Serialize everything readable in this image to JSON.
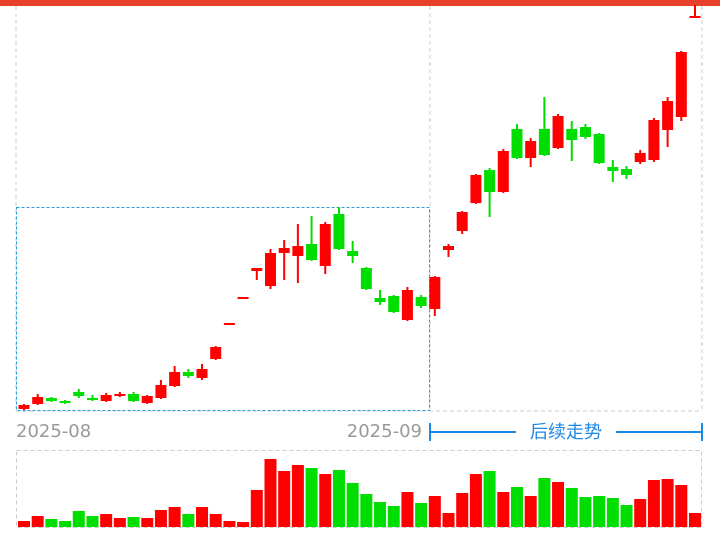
{
  "chart_data": [
    {
      "type": "candlestick",
      "x_labels": [
        "2025-08",
        "2025-09"
      ],
      "annotation": "后续走势",
      "up_color": "#ff0000",
      "down_color": "#00dd00",
      "ylim": [
        0,
        102
      ],
      "open": [
        0.25,
        1.5,
        3,
        2.25,
        4.5,
        3,
        2.25,
        3.5,
        4,
        1.75,
        3,
        6,
        9.5,
        8,
        12.75,
        21.25,
        27.75,
        34.75,
        31,
        39.25,
        38.5,
        41.5,
        36,
        49,
        39.75,
        35.5,
        28,
        28.5,
        22.5,
        28.25,
        25.25,
        40,
        44.75,
        51.75,
        60,
        54.5,
        70.25,
        63,
        70.25,
        65.5,
        70.25,
        70.75,
        69,
        60.75,
        60.25,
        62,
        62.5,
        70,
        73.25,
        98
      ],
      "high": [
        1.5,
        4,
        3.25,
        2.5,
        5.25,
        3.75,
        4.25,
        4.5,
        4.5,
        3.75,
        7.5,
        11,
        10.25,
        11.5,
        16,
        21.75,
        28.25,
        35.5,
        40.25,
        42.5,
        46.5,
        48.5,
        47,
        50.75,
        42.25,
        35.75,
        30,
        28.75,
        30.75,
        28.75,
        33.5,
        41.5,
        49.75,
        59,
        60.5,
        65.25,
        71.5,
        68,
        78.25,
        74,
        72.25,
        71.5,
        69.25,
        62.5,
        61,
        65,
        73,
        78.25,
        89.75,
        101.25
      ],
      "low": [
        0,
        1.25,
        2,
        1.5,
        3,
        2.25,
        2,
        3.25,
        2,
        1.5,
        2.75,
        5.75,
        8,
        7.5,
        12.5,
        21.25,
        27.75,
        32.5,
        30.25,
        32.5,
        31.75,
        37.25,
        34,
        40,
        36.75,
        30,
        26.25,
        24.25,
        22.25,
        25.5,
        23.5,
        38.25,
        44,
        51.5,
        48.25,
        54.25,
        62.75,
        60.75,
        63.5,
        65.25,
        62.25,
        67.75,
        61.5,
        57,
        57.75,
        61.5,
        62,
        65.75,
        72.25,
        98
      ],
      "close": [
        1.25,
        3.25,
        2.25,
        1.75,
        3.5,
        2.5,
        3.75,
        4,
        2.25,
        3.5,
        6.25,
        9.5,
        8.5,
        10.25,
        15.75,
        21.75,
        28.25,
        35.5,
        39.25,
        40.5,
        41,
        37.5,
        46.5,
        40.25,
        38.5,
        30.25,
        27,
        24.5,
        30,
        26,
        33.25,
        41,
        49.5,
        58.75,
        54.5,
        64.75,
        63,
        67.25,
        63.75,
        73.5,
        67.5,
        68.25,
        61.75,
        59.75,
        58.75,
        64.25,
        72.5,
        77.25,
        89.5,
        98.5
      ]
    },
    {
      "type": "bar",
      "ylim": [
        0,
        72
      ],
      "values": [
        6,
        11,
        8,
        6,
        16,
        11,
        13,
        9,
        10,
        9,
        17,
        20,
        13,
        20,
        13,
        6,
        5,
        37,
        68,
        56,
        62,
        59,
        53,
        57,
        44,
        33,
        25,
        21,
        35,
        24,
        31,
        14,
        34,
        53,
        56,
        35,
        40,
        31,
        49,
        45,
        39,
        30,
        31,
        29,
        22,
        28,
        47,
        48,
        42,
        14
      ]
    }
  ]
}
